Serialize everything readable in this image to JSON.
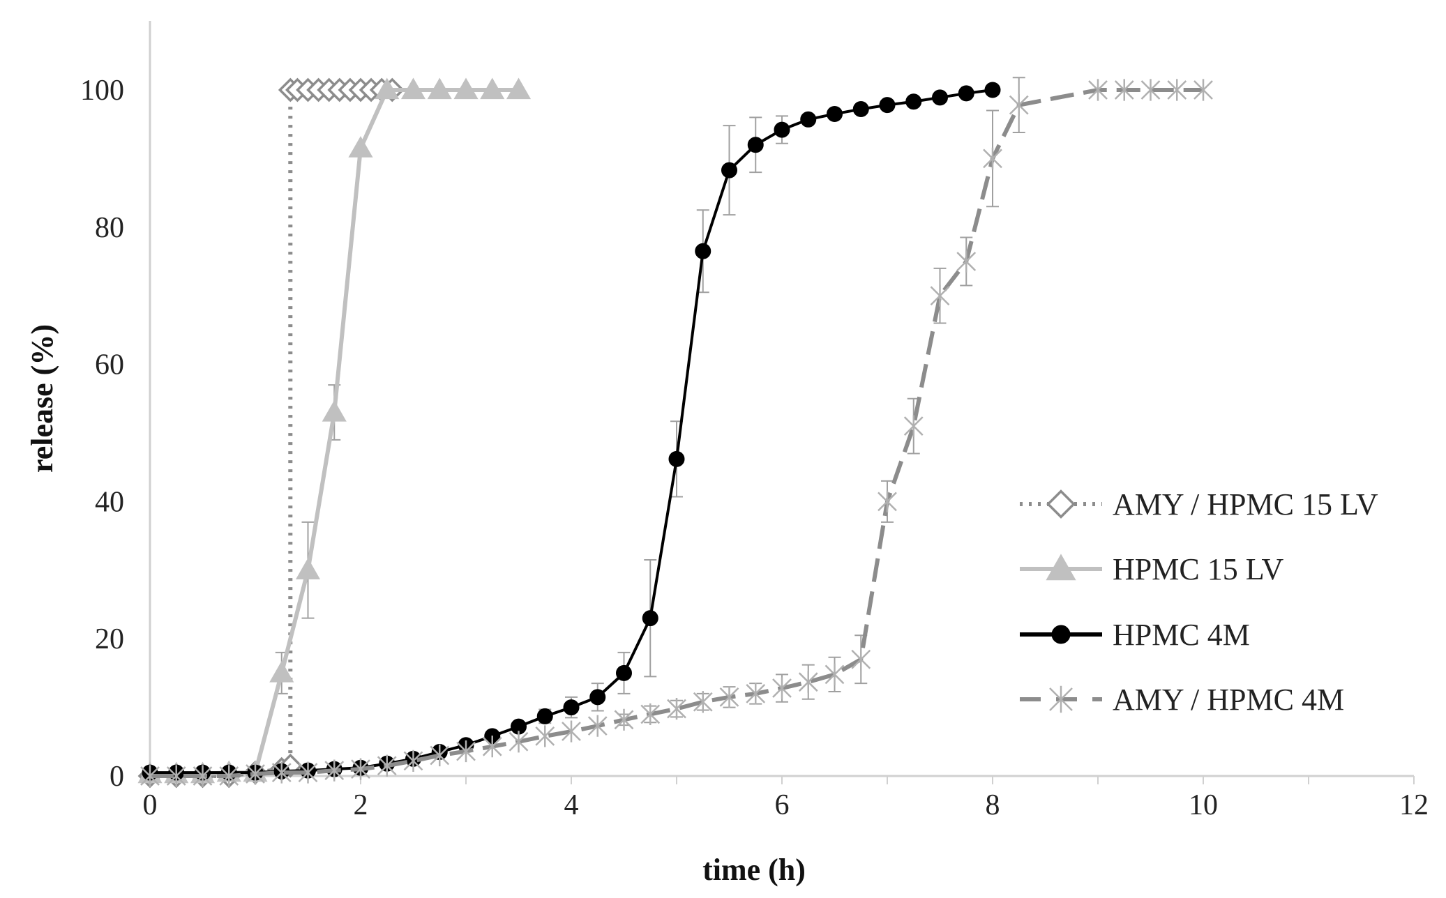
{
  "chart_data": {
    "type": "line",
    "title": "",
    "xlabel": "time (h)",
    "ylabel": "release (%)",
    "xlim": [
      0,
      12
    ],
    "ylim": [
      0,
      110
    ],
    "xticks": [
      0,
      2,
      4,
      6,
      8,
      10,
      12
    ],
    "yticks": [
      0,
      20,
      40,
      60,
      80,
      100
    ],
    "legend_position": "right",
    "series": [
      {
        "name": "AMY / HPMC 15 LV",
        "color": "#8c8c8c",
        "line": "dotted",
        "marker": "diamond",
        "x": [
          0,
          0.25,
          0.5,
          0.75,
          1.0,
          1.25,
          1.333,
          1.333,
          1.4,
          1.5,
          1.6,
          1.7,
          1.8,
          1.9,
          2.0,
          2.1,
          2.2,
          2.3
        ],
        "y": [
          0,
          0,
          0,
          0,
          0.5,
          1.0,
          1.5,
          100,
          100,
          100,
          100,
          100,
          100,
          100,
          100,
          100,
          100,
          100
        ],
        "err": [
          0,
          0,
          0,
          0,
          0,
          0,
          0,
          0,
          0,
          0,
          0,
          0,
          0,
          0,
          0,
          0,
          0,
          0
        ]
      },
      {
        "name": "HPMC 15 LV",
        "color": "#c0c0c0",
        "line": "solid",
        "marker": "triangle",
        "x": [
          0,
          0.25,
          0.5,
          0.75,
          1.0,
          1.25,
          1.5,
          1.75,
          2.0,
          2.25,
          2.5,
          2.75,
          3.0,
          3.25,
          3.5
        ],
        "y": [
          0.3,
          0.3,
          0.3,
          0.5,
          0.5,
          15,
          30,
          53,
          91.5,
          100,
          100,
          100,
          100,
          100,
          100
        ],
        "err": [
          0,
          0,
          0,
          0,
          0,
          3,
          7,
          4,
          0,
          0,
          0,
          0,
          0,
          0,
          0
        ]
      },
      {
        "name": "HPMC 4M",
        "color": "#000000",
        "line": "solid",
        "marker": "circle",
        "x": [
          0,
          0.25,
          0.5,
          0.75,
          1.0,
          1.25,
          1.5,
          1.75,
          2.0,
          2.25,
          2.5,
          2.75,
          3.0,
          3.25,
          3.5,
          3.75,
          4.0,
          4.25,
          4.5,
          4.75,
          5.0,
          5.25,
          5.5,
          5.75,
          6.0,
          6.25,
          6.5,
          6.75,
          7.0,
          7.25,
          7.5,
          7.75,
          8.0
        ],
        "y": [
          0.5,
          0.5,
          0.5,
          0.5,
          0.5,
          0.7,
          0.8,
          1.0,
          1.2,
          1.8,
          2.5,
          3.5,
          4.5,
          5.8,
          7.2,
          8.7,
          10.0,
          11.5,
          15.0,
          23.0,
          46.2,
          76.5,
          88.3,
          92.0,
          94.2,
          95.7,
          96.5,
          97.2,
          97.8,
          98.3,
          98.9,
          99.5,
          100.0
        ],
        "err": [
          0,
          0,
          0,
          0,
          0,
          0,
          0,
          0,
          0,
          0,
          0,
          0,
          0,
          0,
          0,
          1,
          1.5,
          2,
          3,
          8.5,
          5.5,
          6,
          6.5,
          4,
          2,
          0,
          0,
          0,
          0,
          0,
          0,
          0,
          0
        ]
      },
      {
        "name": "AMY / HPMC 4M",
        "color": "#8c8c8c",
        "line": "dashed",
        "marker": "star",
        "x": [
          0,
          0.25,
          0.5,
          0.75,
          1.0,
          1.25,
          1.5,
          1.75,
          2.0,
          2.25,
          2.5,
          2.75,
          3.0,
          3.25,
          3.5,
          3.75,
          4.0,
          4.25,
          4.5,
          4.75,
          5.0,
          5.25,
          5.5,
          5.75,
          6.0,
          6.25,
          6.5,
          6.75,
          7.0,
          7.25,
          7.5,
          7.75,
          8.0,
          8.25,
          9.0,
          9.25,
          9.5,
          9.75,
          10.0
        ],
        "y": [
          0,
          0,
          0,
          0,
          0.3,
          0.5,
          0.5,
          0.8,
          1.0,
          1.5,
          2.2,
          3.0,
          3.6,
          4.3,
          5.0,
          5.8,
          6.5,
          7.3,
          8.2,
          9.0,
          9.8,
          10.8,
          11.5,
          12.0,
          12.8,
          13.7,
          14.8,
          17.0,
          40.0,
          51.0,
          70.0,
          75.0,
          90.0,
          97.8,
          100,
          100,
          100,
          100,
          100
        ],
        "err": [
          0,
          0,
          0,
          0,
          0,
          0,
          0,
          0,
          0,
          0,
          0,
          0,
          0,
          0,
          0,
          0,
          0,
          0,
          0.8,
          1.2,
          1.2,
          1.2,
          1.5,
          1.5,
          2,
          2.5,
          2.5,
          3.5,
          3,
          4,
          4,
          3.5,
          7,
          4,
          0,
          0,
          0,
          0,
          0
        ]
      }
    ]
  }
}
